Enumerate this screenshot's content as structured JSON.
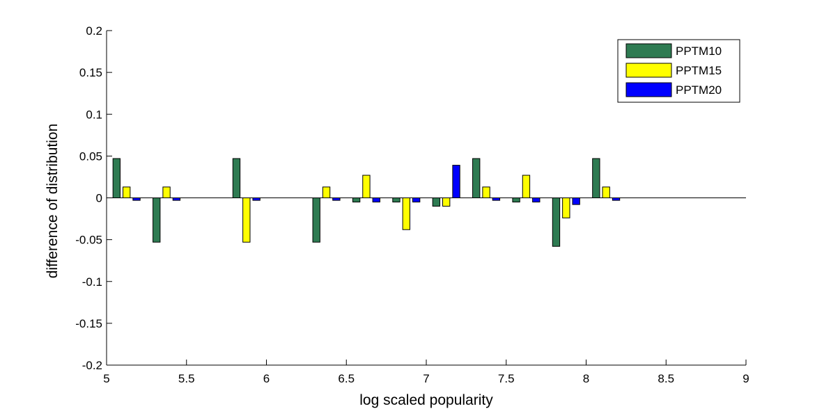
{
  "chart_data": {
    "type": "bar",
    "xlabel": "log scaled popularity",
    "ylabel": "difference of distribution",
    "xlim": [
      5,
      9
    ],
    "ylim": [
      -0.2,
      0.2
    ],
    "xticks": [
      "5",
      "5.5",
      "6",
      "6.5",
      "7",
      "7.5",
      "8",
      "8.5",
      "9"
    ],
    "yticks": [
      "0.2",
      "0.15",
      "0.1",
      "0.05",
      "0",
      "-0.05",
      "-0.1",
      "-0.15",
      "-0.2"
    ],
    "legend_position": "top-right",
    "grid": false,
    "x": [
      5.125,
      5.375,
      5.875,
      6.375,
      6.625,
      6.875,
      7.125,
      7.375,
      7.625,
      7.875,
      8.125
    ],
    "series": [
      {
        "name": "PPTM10",
        "color": "#2e7b52",
        "values": [
          0.047,
          -0.053,
          0.047,
          -0.053,
          -0.005,
          -0.005,
          -0.01,
          0.047,
          -0.005,
          -0.058,
          0.047
        ]
      },
      {
        "name": "PPTM15",
        "color": "#ffff00",
        "values": [
          0.013,
          0.013,
          -0.053,
          0.013,
          0.027,
          -0.038,
          -0.01,
          0.013,
          0.027,
          -0.024,
          0.013
        ]
      },
      {
        "name": "PPTM20",
        "color": "#0000ff",
        "values": [
          -0.003,
          -0.003,
          -0.003,
          -0.003,
          -0.005,
          -0.005,
          0.039,
          -0.003,
          -0.005,
          -0.008,
          -0.003
        ]
      }
    ]
  }
}
